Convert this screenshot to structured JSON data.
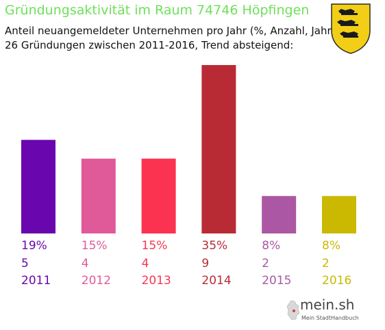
{
  "header": {
    "title": "Gründungsaktivität im Raum 74746 Höpfingen",
    "subtitle_line1": "Anteil neuangemeldeter Unternehmen pro Jahr (%, Anzahl, Jahr)",
    "subtitle_line2": "26 Gründungen zwischen 2011-2016, Trend absteigend:"
  },
  "colors": {
    "title": "#6ee05a",
    "bars": [
      "#6a06ad",
      "#e05a9a",
      "#fb3350",
      "#b82b35",
      "#ab57a3",
      "#cbb800"
    ]
  },
  "chart_data": {
    "type": "bar",
    "categories": [
      "2011",
      "2012",
      "2013",
      "2014",
      "2015",
      "2016"
    ],
    "values": [
      5,
      4,
      4,
      9,
      2,
      2
    ],
    "percent_labels": [
      "19%",
      "15%",
      "15%",
      "35%",
      "8%",
      "8%"
    ],
    "count_labels": [
      "5",
      "4",
      "4",
      "9",
      "2",
      "2"
    ],
    "title": "Gründungsaktivität im Raum 74746 Höpfingen",
    "ylim": [
      0,
      9
    ],
    "grid": false,
    "legend": "none"
  },
  "crest": {
    "icon": "baden-wuerttemberg-coat-of-arms-icon"
  },
  "branding": {
    "name": "mein.sh",
    "tagline": "Mein StadtHandbuch",
    "icon": "germany-map-icon"
  }
}
